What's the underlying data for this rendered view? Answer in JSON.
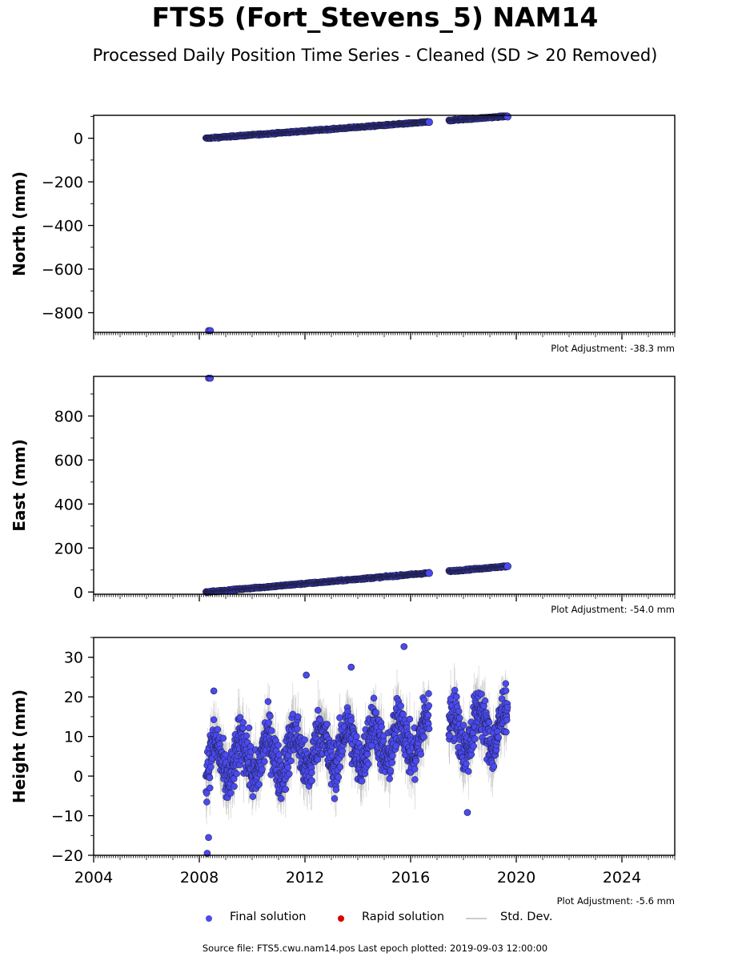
{
  "title": "FTS5 (Fort_Stevens_5) NAM14",
  "subtitle": "Processed Daily Position Time Series - Cleaned (SD > 20 Removed)",
  "colors": {
    "final": "#4a4aee",
    "rapid": "#dd0000",
    "stddev": "#aaaaaa",
    "edge": "#1a1a3a"
  },
  "legend": {
    "final": "Final solution",
    "rapid": "Rapid solution",
    "stddev": "Std. Dev."
  },
  "source": "Source file: FTS5.cwu.nam14.pos  Last epoch plotted: 2019-09-03 12:00:00",
  "chart_data": [
    {
      "type": "scatter",
      "ylabel": "North (mm)",
      "adjustment": "Plot Adjustment: -38.3 mm",
      "xlim": [
        2004,
        2026
      ],
      "ylim": [
        -890,
        105
      ],
      "yticks": [
        0,
        -200,
        -400,
        -600,
        -800
      ],
      "yticklabels": [
        "0",
        "−200",
        "−400",
        "−600",
        "−800"
      ],
      "segments": [
        [
          2008.25,
          2016.7
        ],
        [
          2017.45,
          2019.67
        ]
      ],
      "trend": {
        "t0": 2008.3,
        "y0": 0,
        "rate": 8.9
      },
      "noise": 2.2,
      "outliers": [
        [
          2008.35,
          -882
        ],
        [
          2008.42,
          -882
        ]
      ],
      "endpoints": [
        [
          2016.7,
          74
        ],
        [
          2019.67,
          99
        ]
      ]
    },
    {
      "type": "scatter",
      "ylabel": "East (mm)",
      "adjustment": "Plot Adjustment: -54.0 mm",
      "xlim": [
        2004,
        2026
      ],
      "ylim": [
        -10,
        980
      ],
      "yticks": [
        0,
        200,
        400,
        600,
        800
      ],
      "yticklabels": [
        "0",
        "200",
        "400",
        "600",
        "800"
      ],
      "segments": [
        [
          2008.25,
          2016.7
        ],
        [
          2017.45,
          2019.67
        ]
      ],
      "trend": {
        "t0": 2008.3,
        "y0": 0,
        "rate": 10.3
      },
      "noise": 2.4,
      "outliers": [
        [
          2008.35,
          972
        ],
        [
          2008.42,
          972
        ]
      ],
      "endpoints": [
        [
          2016.7,
          86
        ],
        [
          2019.67,
          117
        ]
      ]
    },
    {
      "type": "scatter",
      "ylabel": "Height (mm)",
      "adjustment": "Plot Adjustment: -5.6 mm",
      "xlim": [
        2004,
        2026
      ],
      "ylim": [
        -20,
        35
      ],
      "yticks": [
        30,
        20,
        10,
        0,
        -10,
        -20
      ],
      "yticklabels": [
        "30",
        "20",
        "10",
        "0",
        "−10",
        "−20"
      ],
      "xticks": [
        2004,
        2008,
        2012,
        2016,
        2020,
        2024
      ],
      "xticklabels": [
        "2004",
        "2008",
        "2012",
        "2016",
        "2020",
        "2024"
      ],
      "segments": [
        [
          2008.25,
          2016.7
        ],
        [
          2017.45,
          2019.67
        ]
      ],
      "trend": {
        "t0": 2008.3,
        "y0": 3,
        "rate": 0.85
      },
      "seasonal_amplitude": 5,
      "noise": 4.5,
      "outliers": [
        [
          2008.3,
          -19.5
        ],
        [
          2008.35,
          -15.5
        ],
        [
          2015.75,
          32.7
        ],
        [
          2012.05,
          25.5
        ],
        [
          2013.75,
          27.5
        ],
        [
          2018.15,
          -9.2
        ],
        [
          2008.55,
          21.5
        ]
      ],
      "endpoints": []
    }
  ]
}
